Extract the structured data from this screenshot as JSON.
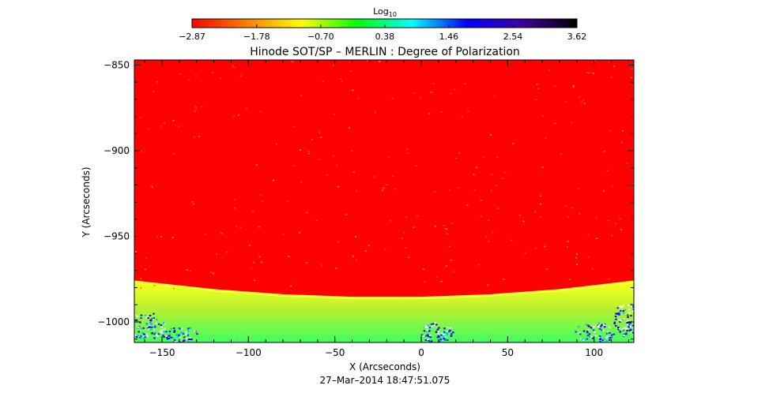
{
  "chart_data": {
    "type": "heatmap",
    "title": "Hinode SOT/SP – MERLIN : Degree of Polarization",
    "xlabel": "X (Arcseconds)",
    "ylabel": "Y (Arcseconds)",
    "timestamp": "27–Mar–2014 18:47:51.075",
    "xlim": [
      -166,
      123
    ],
    "ylim": [
      -1012,
      -847
    ],
    "x_ticks": [
      -150,
      -100,
      -50,
      0,
      50,
      100
    ],
    "x_tick_labels": [
      "−150",
      "−100",
      "−50",
      "0",
      "50",
      "100"
    ],
    "y_ticks": [
      -850,
      -900,
      -950,
      -1000
    ],
    "y_tick_labels": [
      "−850",
      "−900",
      "−950",
      "−1000"
    ],
    "colorbar": {
      "label_base": "Log",
      "label_sub": "10",
      "min": -2.87,
      "max": 3.62,
      "ticks": [
        -2.87,
        -1.78,
        -0.7,
        0.38,
        1.46,
        2.54,
        3.62
      ],
      "tick_labels": [
        "−2.87",
        "−1.78",
        "−0.70",
        "0.38",
        "1.46",
        "2.54",
        "3.62"
      ],
      "colormap": [
        "#ff0000",
        "#ff8000",
        "#ffff00",
        "#00ff00",
        "#00ffff",
        "#0000ff",
        "#4000a0",
        "#000000"
      ]
    },
    "background_value": -2.87,
    "limb": {
      "x": [
        -166,
        -120,
        -80,
        -40,
        0,
        40,
        80,
        123
      ],
      "y": [
        -976.5,
        -981.5,
        -984.5,
        -986,
        -986,
        -984.5,
        -981.5,
        -976.5
      ]
    }
  }
}
